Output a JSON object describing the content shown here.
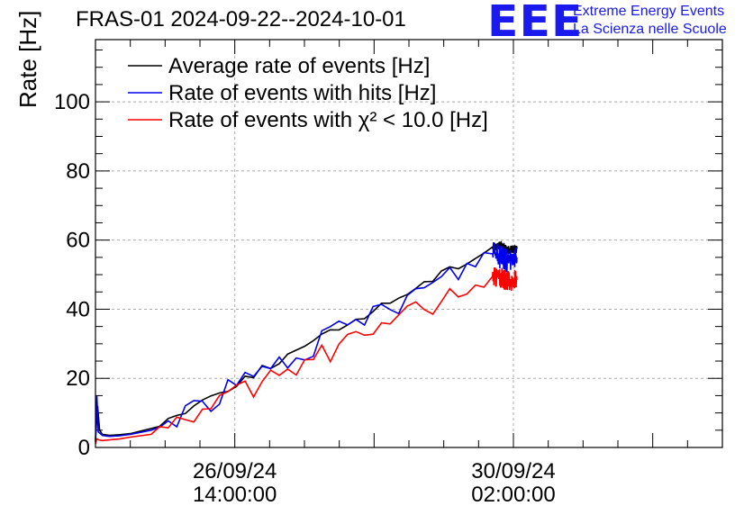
{
  "header": {
    "title": "FRAS-01 2024-09-22--2024-10-01",
    "logo_text": "EEE",
    "logo_line1": "Extreme Energy Events",
    "logo_line2": "La Scienza nelle Scuole"
  },
  "chart_data": {
    "type": "line",
    "title": "FRAS-01 2024-09-22--2024-10-01",
    "xlabel": "",
    "ylabel": "Rate [Hz]",
    "ylim": [
      0,
      118
    ],
    "xlim": [
      0,
      9
    ],
    "grid": true,
    "legend_position": "top-left",
    "y_ticks": [
      "0",
      "20",
      "40",
      "60",
      "80",
      "100"
    ],
    "x_ticks": [
      {
        "x": 2.0,
        "date": "26/09/24",
        "time": "14:00:00"
      },
      {
        "x": 6.0,
        "date": "30/09/24",
        "time": "02:00:00"
      }
    ],
    "series": [
      {
        "name": "Average rate of events [Hz]",
        "color": "#000000",
        "x": [
          0.0,
          0.03,
          0.06,
          0.1,
          0.2,
          0.35,
          0.5,
          0.8,
          5.7,
          5.85,
          5.9,
          6.05
        ],
        "y": [
          2.0,
          12.0,
          5.0,
          3.8,
          3.5,
          3.7,
          4.0,
          5.5,
          58.0,
          58.5,
          57.0,
          57.5
        ],
        "noise_after_x": 5.65,
        "noise_amplitude": 1.2
      },
      {
        "name": "Rate of events with hits [Hz]",
        "color": "#0000ee",
        "x": [
          0.0,
          0.02,
          0.04,
          0.1,
          0.2,
          0.35,
          0.5,
          0.8,
          5.7,
          5.85,
          5.9,
          6.05
        ],
        "y": [
          1.5,
          15.0,
          4.5,
          3.5,
          3.2,
          3.4,
          3.8,
          5.0,
          56.0,
          55.0,
          54.0,
          55.0
        ],
        "noise_after_x": 5.65,
        "noise_amplitude": 3.5
      },
      {
        "name": "Rate of events with χ² < 10.0 [Hz]",
        "color": "#ff0000",
        "x": [
          0.0,
          0.02,
          0.05,
          0.1,
          0.2,
          0.35,
          0.5,
          0.8,
          5.7,
          5.85,
          5.9,
          6.05
        ],
        "y": [
          1.0,
          2.5,
          2.2,
          2.0,
          2.2,
          2.5,
          3.0,
          3.8,
          49.5,
          49.0,
          48.0,
          48.5
        ],
        "noise_after_x": 5.65,
        "noise_amplitude": 3.0
      }
    ]
  }
}
